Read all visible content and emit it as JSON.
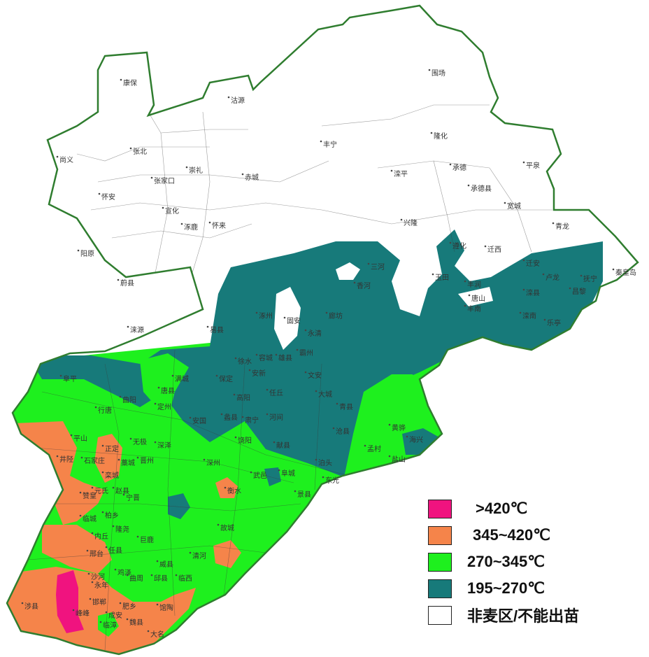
{
  "map": {
    "colors": {
      "outline": "#2f7d2f",
      "district_line": "#3a3a3a",
      "non_wheat": "#ffffff",
      "teal": "#177a7a",
      "green": "#1ef01e",
      "orange": "#f5844a",
      "magenta": "#f0137f"
    },
    "place_labels": [
      "康保",
      "沽源",
      "张北",
      "尚义",
      "崇礼",
      "赤城",
      "张家口",
      "怀安",
      "宣化",
      "涿鹿",
      "怀来",
      "阳原",
      "蔚县",
      "涞源",
      "易县",
      "涿州",
      "固安",
      "永清",
      "霸州",
      "丰宁",
      "围场",
      "隆化",
      "滦平",
      "承德",
      "承德县",
      "平泉",
      "宽城",
      "兴隆",
      "青龙",
      "遵化",
      "迁西",
      "迁安",
      "玉田",
      "丰润",
      "唐山",
      "滦县",
      "抚宁",
      "昌黎",
      "秦皇岛",
      "卢龙",
      "滦南",
      "乐亭",
      "丰南",
      "廊坊",
      "三河",
      "香河",
      "徐水",
      "容城",
      "雄县",
      "保定",
      "满城",
      "唐县",
      "阜平",
      "曲阳",
      "行唐",
      "定州",
      "安新",
      "高阳",
      "任丘",
      "文安",
      "大城",
      "青县",
      "沧县",
      "黄骅",
      "海兴",
      "蠡县",
      "肃宁",
      "河间",
      "安国",
      "饶阳",
      "献县",
      "泊头",
      "孟村",
      "盐山",
      "东光",
      "阜城",
      "景县",
      "武邑",
      "衡水",
      "深州",
      "藁城",
      "晋州",
      "无极",
      "深泽",
      "平山",
      "正定",
      "井陉",
      "石家庄",
      "栾城",
      "元氏",
      "赞皇",
      "赵县",
      "宁晋",
      "柏乡",
      "临城",
      "隆尧",
      "内丘",
      "巨鹿",
      "任县",
      "邢台",
      "故城",
      "清河",
      "威县",
      "沙河",
      "永年",
      "邯郸",
      "涉县",
      "峰峰",
      "成安",
      "肥乡",
      "馆陶",
      "魏县",
      "临漳",
      "大名",
      "曲周",
      "鸡泽",
      "邱县",
      "临西"
    ]
  },
  "legend": {
    "items": [
      {
        "label": ">420℃",
        "color": "#f0137f"
      },
      {
        "label": "345~420℃",
        "color": "#f5844a"
      },
      {
        "label": "270~345℃",
        "color": "#1ef01e"
      },
      {
        "label": "195~270℃",
        "color": "#177a7a"
      },
      {
        "label": "非麦区/不能出苗",
        "color": "#ffffff"
      }
    ]
  }
}
